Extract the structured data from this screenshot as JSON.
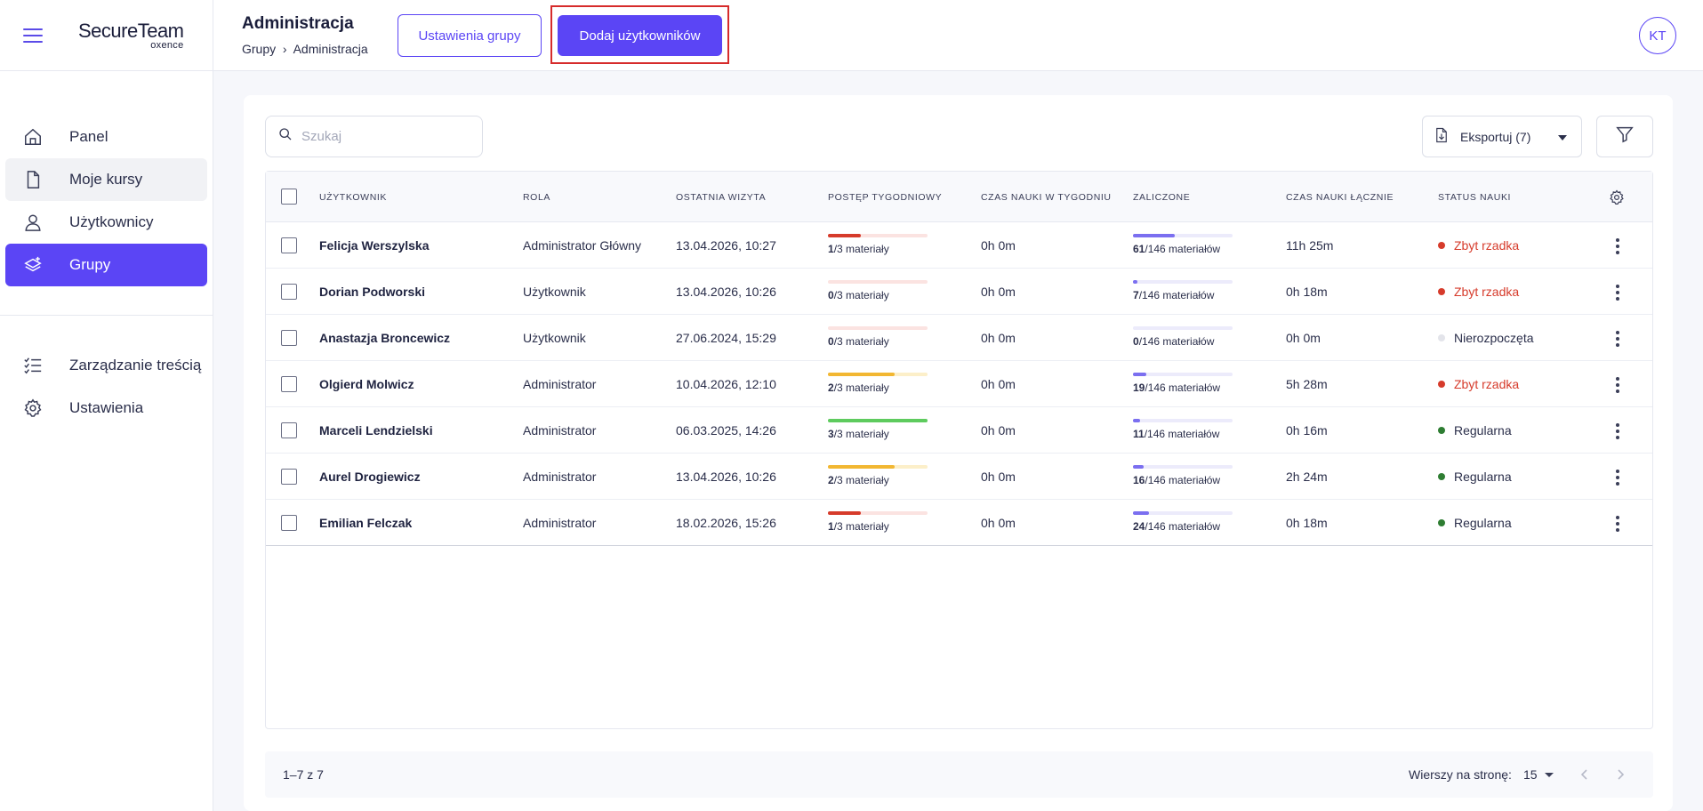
{
  "brand": {
    "name": "SecureTeam",
    "sub": "oxence"
  },
  "sidebar": {
    "items": [
      {
        "id": "panel",
        "label": "Panel",
        "icon": "home-icon"
      },
      {
        "id": "moje-kursy",
        "label": "Moje kursy",
        "icon": "document-icon"
      },
      {
        "id": "uzytkownicy",
        "label": "Użytkownicy",
        "icon": "user-icon"
      },
      {
        "id": "grupy",
        "label": "Grupy",
        "icon": "layers-icon",
        "active": true
      }
    ],
    "items2": [
      {
        "id": "zarzadzanie",
        "label": "Zarządzanie treścią",
        "icon": "checklist-icon"
      },
      {
        "id": "ustawienia",
        "label": "Ustawienia",
        "icon": "gear-icon"
      }
    ]
  },
  "header": {
    "title": "Administracja",
    "breadcrumb": [
      "Grupy",
      "Administracja"
    ],
    "settings_button": "Ustawienia grupy",
    "add_button": "Dodaj użytkowników",
    "avatar": "KT"
  },
  "toolbar": {
    "search_placeholder": "Szukaj",
    "export_label": "Eksportuj (7)"
  },
  "table": {
    "columns": [
      "Użytkownik",
      "Rola",
      "Ostatnia wizyta",
      "Postęp tygodniowy",
      "Czas nauki w tygodniu",
      "Zaliczone",
      "Czas nauki łącznie",
      "Status nauki"
    ],
    "rows": [
      {
        "name": "Felicja Werszylska",
        "role": "Administrator Główny",
        "last": "13.04.2026, 10:27",
        "wk_done": "1",
        "wk_total": "/3 materiały",
        "wk_frac": 0.333,
        "wk_color": "#d63b2b",
        "wk_track": "#fbe3e1",
        "week_time": "0h 0m",
        "done": "61",
        "done_total": "/146 materiałów",
        "done_frac": 0.418,
        "total_time": "11h 25m",
        "status": "Zbyt rzadka",
        "status_color": "#d63b2b",
        "status_text_color": "#d63b2b"
      },
      {
        "name": "Dorian Podworski",
        "role": "Użytkownik",
        "last": "13.04.2026, 10:26",
        "wk_done": "0",
        "wk_total": "/3 materiały",
        "wk_frac": 0,
        "wk_color": "#d63b2b",
        "wk_track": "#fbe3e1",
        "week_time": "0h 0m",
        "done": "7",
        "done_total": "/146 materiałów",
        "done_frac": 0.048,
        "total_time": "0h 18m",
        "status": "Zbyt rzadka",
        "status_color": "#d63b2b",
        "status_text_color": "#d63b2b"
      },
      {
        "name": "Anastazja Broncewicz",
        "role": "Użytkownik",
        "last": "27.06.2024, 15:29",
        "wk_done": "0",
        "wk_total": "/3 materiały",
        "wk_frac": 0,
        "wk_color": "#d63b2b",
        "wk_track": "#fbe3e1",
        "week_time": "0h 0m",
        "done": "0",
        "done_total": "/146 materiałów",
        "done_frac": 0,
        "total_time": "0h 0m",
        "status": "Nierozpoczęta",
        "status_color": "#e3e4ea",
        "status_text_color": "#2a2e4a"
      },
      {
        "name": "Olgierd Molwicz",
        "role": "Administrator",
        "last": "10.04.2026, 12:10",
        "wk_done": "2",
        "wk_total": "/3 materiały",
        "wk_frac": 0.667,
        "wk_color": "#f2b732",
        "wk_track": "#fcefc9",
        "week_time": "0h 0m",
        "done": "19",
        "done_total": "/146 materiałów",
        "done_frac": 0.13,
        "total_time": "5h 28m",
        "status": "Zbyt rzadka",
        "status_color": "#d63b2b",
        "status_text_color": "#d63b2b"
      },
      {
        "name": "Marceli Lendzielski",
        "role": "Administrator",
        "last": "06.03.2025, 14:26",
        "wk_done": "3",
        "wk_total": "/3 materiały",
        "wk_frac": 1,
        "wk_color": "#5ecb5e",
        "wk_track": "#dff5df",
        "week_time": "0h 0m",
        "done": "11",
        "done_total": "/146 materiałów",
        "done_frac": 0.075,
        "total_time": "0h 16m",
        "status": "Regularna",
        "status_color": "#2e7d32",
        "status_text_color": "#2a2e4a"
      },
      {
        "name": "Aurel Drogiewicz",
        "role": "Administrator",
        "last": "13.04.2026, 10:26",
        "wk_done": "2",
        "wk_total": "/3 materiały",
        "wk_frac": 0.667,
        "wk_color": "#f2b732",
        "wk_track": "#fcefc9",
        "week_time": "0h 0m",
        "done": "16",
        "done_total": "/146 materiałów",
        "done_frac": 0.11,
        "total_time": "2h 24m",
        "status": "Regularna",
        "status_color": "#2e7d32",
        "status_text_color": "#2a2e4a"
      },
      {
        "name": "Emilian Felczak",
        "role": "Administrator",
        "last": "18.02.2026, 15:26",
        "wk_done": "1",
        "wk_total": "/3 materiały",
        "wk_frac": 0.333,
        "wk_color": "#d63b2b",
        "wk_track": "#fbe3e1",
        "week_time": "0h 0m",
        "done": "24",
        "done_total": "/146 materiałów",
        "done_frac": 0.164,
        "total_time": "0h 18m",
        "status": "Regularna",
        "status_color": "#2e7d32",
        "status_text_color": "#2a2e4a"
      }
    ]
  },
  "pagination": {
    "count": "1–7 z 7",
    "rows_per_page_label": "Wierszy na stronę:",
    "rows_per_page": "15"
  },
  "colors": {
    "accent": "#5b45f5",
    "done_fill": "#7b6ff0",
    "done_track": "#ecebfb"
  }
}
